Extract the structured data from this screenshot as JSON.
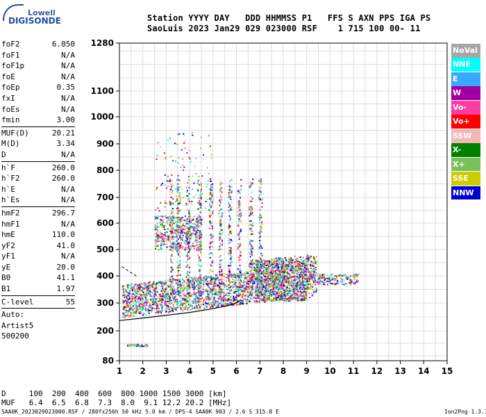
{
  "logo": {
    "top": "Lowell",
    "bottom": "DIGISONDE"
  },
  "header": {
    "line1": "Station YYYY DAY   DDD HHMMSS P1   FFS S AXN PPS IGA PS",
    "line2": "SaoLuis 2023 Jan29 029 023000 RSF    1 715 100 00- 11"
  },
  "params": {
    "group1": [
      {
        "k": "foF2",
        "v": "6.050"
      },
      {
        "k": "foF1",
        "v": "N/A"
      },
      {
        "k": "foF1p",
        "v": "N/A"
      },
      {
        "k": "foE",
        "v": "N/A"
      },
      {
        "k": "foEp",
        "v": "0.35"
      },
      {
        "k": "fxI",
        "v": "N/A"
      },
      {
        "k": "foEs",
        "v": "N/A"
      },
      {
        "k": "fmin",
        "v": "3.00"
      }
    ],
    "group2": [
      {
        "k": "MUF(D)",
        "v": "20.21"
      },
      {
        "k": "M(D)",
        "v": "3.34"
      },
      {
        "k": "D",
        "v": "N/A"
      }
    ],
    "group3": [
      {
        "k": "h`F",
        "v": "260.0"
      },
      {
        "k": "h`F2",
        "v": "260.0"
      },
      {
        "k": "h`E",
        "v": "N/A"
      },
      {
        "k": "h`Es",
        "v": "N/A"
      }
    ],
    "group4": [
      {
        "k": "hmF2",
        "v": "296.7"
      },
      {
        "k": "hmF1",
        "v": "N/A"
      },
      {
        "k": "hmE",
        "v": "110.0"
      },
      {
        "k": "yF2",
        "v": "41.0"
      },
      {
        "k": "yF1",
        "v": "N/A"
      },
      {
        "k": "yE",
        "v": "20.0"
      },
      {
        "k": "B0",
        "v": "41.1"
      },
      {
        "k": "B1",
        "v": "1.97"
      }
    ],
    "group5": [
      {
        "k": "C-level",
        "v": "55"
      }
    ],
    "group6": [
      {
        "k": "Auto:",
        "v": ""
      },
      {
        "k": "Artist5",
        "v": ""
      },
      {
        "k": "500200",
        "v": ""
      }
    ]
  },
  "legend": [
    {
      "label": "NoVal",
      "color": "#a6a6a6"
    },
    {
      "label": "NNE",
      "color": "#00ffff"
    },
    {
      "label": "E",
      "color": "#3aa7ff"
    },
    {
      "label": "W",
      "color": "#a000a0"
    },
    {
      "label": "Vo-",
      "color": "#ff3ca0"
    },
    {
      "label": "Vo+",
      "color": "#ff0000"
    },
    {
      "label": "SSW",
      "color": "#f4b7b7"
    },
    {
      "label": "X-",
      "color": "#008000"
    },
    {
      "label": "X+",
      "color": "#7bbf5a"
    },
    {
      "label": "SSE",
      "color": "#cccc00"
    },
    {
      "label": "NNW",
      "color": "#0000d0"
    }
  ],
  "bottom": {
    "d_line": "D     100  200  400  600  800 1000 1500 3000 [km]",
    "muf_line": "MUF   6.4  6.5  6.8  7.3  8.0  9.1 12.2 20.2 [MHz]"
  },
  "footer": "SAA0K_2023029023000.RSF / 280fx256h 50 kHz 5.0 km / DPS-4 SAA0K 903 / 2.6 S 315.8 E",
  "version": "Ion2Png 1.3.17",
  "chart_data": {
    "type": "scatter",
    "title": "",
    "xlabel": "",
    "ylabel": "",
    "xlim": [
      1,
      15
    ],
    "ylim": [
      80,
      1280
    ],
    "y_scale": "nonlinear (virtual height)",
    "grid": true,
    "x_ticks": [
      1,
      2,
      3,
      4,
      5,
      6,
      7,
      8,
      9,
      10,
      11,
      12,
      13,
      14,
      15
    ],
    "y_ticks": [
      80,
      200,
      300,
      400,
      500,
      600,
      700,
      800,
      900,
      1000,
      1100,
      1280
    ],
    "ordinary_trace": {
      "name": "",
      "x": [
        1.0,
        2.0,
        3.0,
        4.0,
        5.0,
        5.6,
        6.0,
        6.2
      ],
      "y": [
        237,
        246,
        256,
        266,
        280,
        290,
        300,
        312
      ]
    },
    "extraordinary_trace": {
      "name": "",
      "x": [
        1.1,
        1.4,
        1.8
      ],
      "y": [
        435,
        418,
        395
      ]
    }
  }
}
